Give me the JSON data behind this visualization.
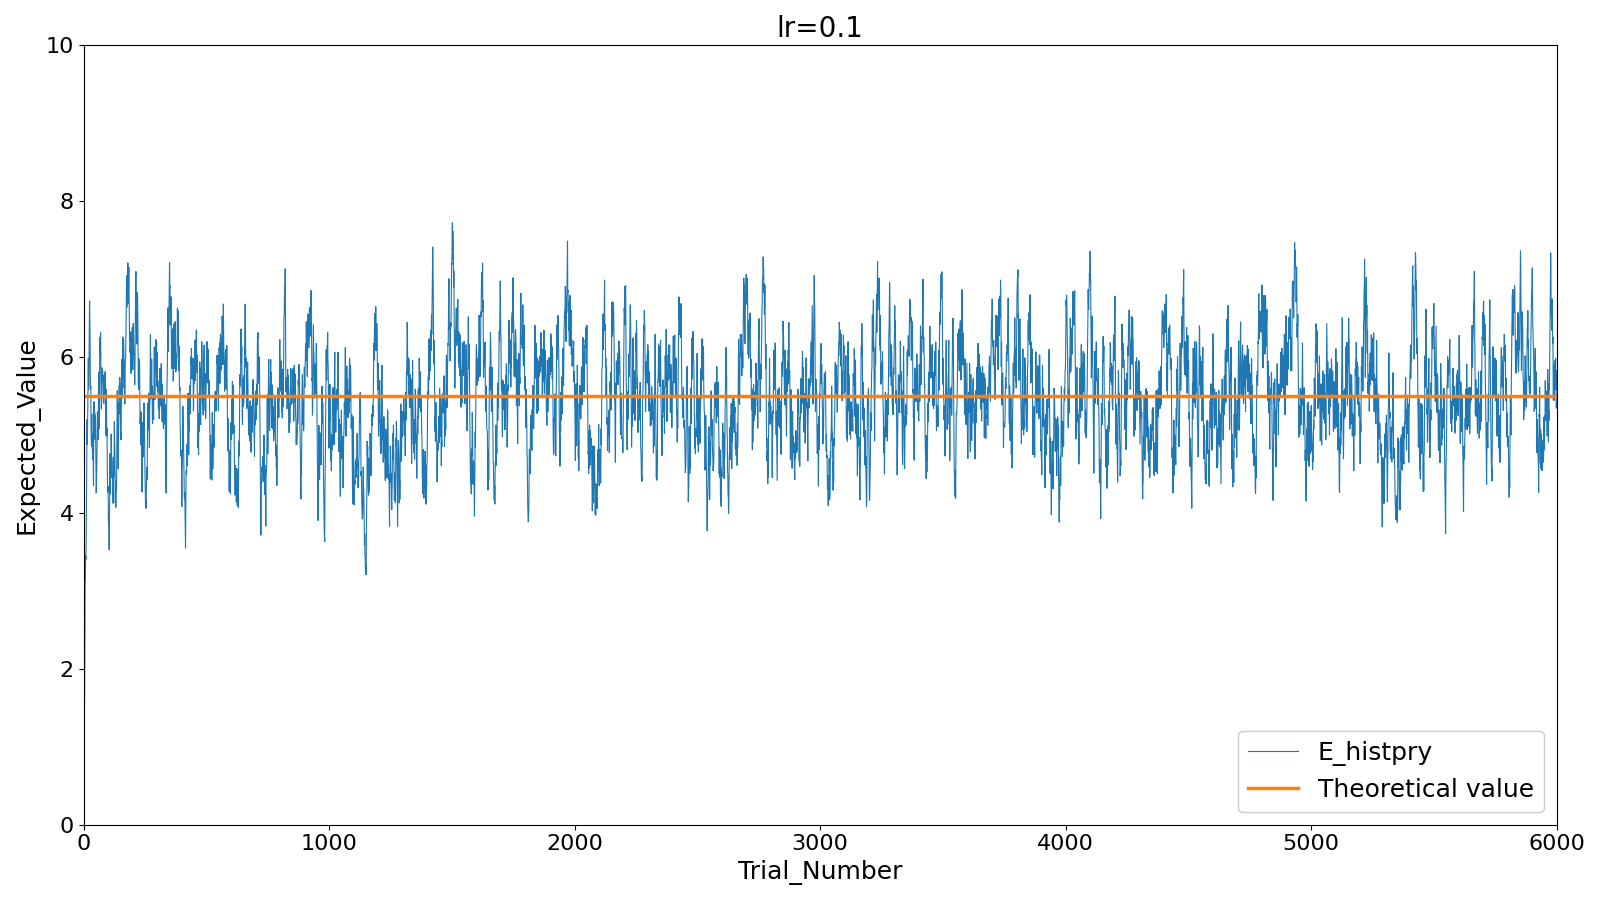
{
  "title": "lr=0.1",
  "xlabel": "Trial_Number",
  "ylabel": "Expected_Value",
  "xlim": [
    0,
    6000
  ],
  "ylim": [
    0,
    10
  ],
  "theoretical_value": 5.5,
  "n_trials": 6001,
  "lr": 0.1,
  "theoretical_color": "#ff7f0e",
  "history_color": "#1f77b4",
  "legend_labels": [
    "E_histpry",
    "Theoretical value"
  ],
  "seed": 0,
  "title_fontsize": 20,
  "label_fontsize": 18,
  "tick_fontsize": 16,
  "legend_fontsize": 18,
  "figsize": [
    16,
    9
  ],
  "dpi": 100
}
